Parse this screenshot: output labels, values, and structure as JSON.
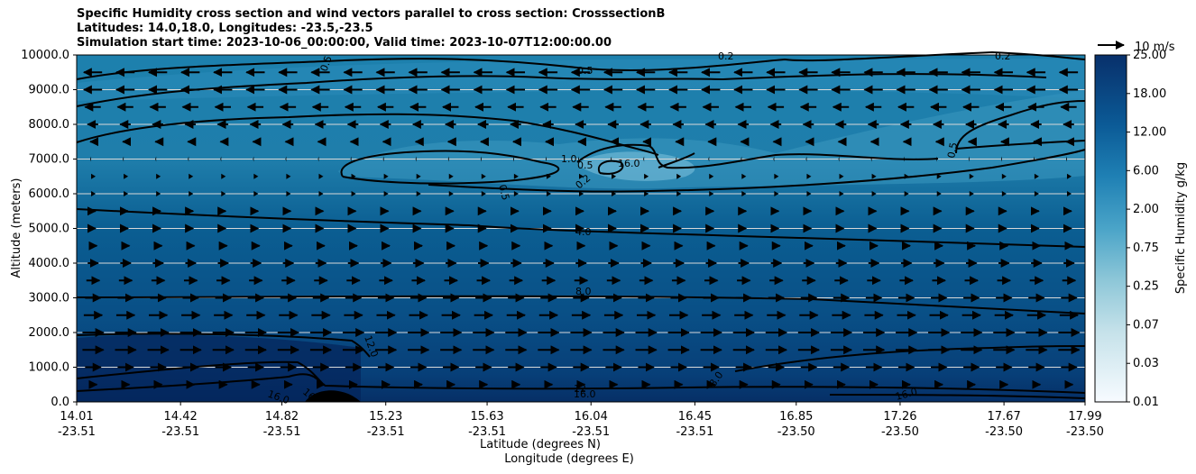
{
  "chart_data": {
    "type": "contour",
    "title_lines": [
      "Specific Humidity cross section and wind vectors parallel to cross section: CrosssectionB",
      "Latitudes: 14.0,18.0, Longitudes: -23.5,-23.5",
      "Simulation start time: 2023-10-06_00:00:00, Valid time: 2023-10-07T12:00:00.00"
    ],
    "ylabel": "Altitude (meters)",
    "xlabel_lines": [
      "Latitude (degrees N)",
      "Longitude (degrees E)"
    ],
    "ylim": [
      0,
      10000
    ],
    "yticks": [
      "0.0",
      "1000.0",
      "2000.0",
      "3000.0",
      "4000.0",
      "5000.0",
      "6000.0",
      "7000.0",
      "8000.0",
      "9000.0",
      "10000.0"
    ],
    "xticks": [
      {
        "lat": "14.01",
        "lon": "-23.51"
      },
      {
        "lat": "14.42",
        "lon": "-23.51"
      },
      {
        "lat": "14.82",
        "lon": "-23.51"
      },
      {
        "lat": "15.23",
        "lon": "-23.51"
      },
      {
        "lat": "15.63",
        "lon": "-23.51"
      },
      {
        "lat": "16.04",
        "lon": "-23.51"
      },
      {
        "lat": "16.45",
        "lon": "-23.51"
      },
      {
        "lat": "16.85",
        "lon": "-23.50"
      },
      {
        "lat": "17.26",
        "lon": "-23.50"
      },
      {
        "lat": "17.67",
        "lon": "-23.50"
      },
      {
        "lat": "17.99",
        "lon": "-23.50"
      }
    ],
    "colorbar": {
      "label": "Specific Humidity g/kg",
      "ticks": [
        "0.01",
        "0.03",
        "0.07",
        "0.25",
        "0.75",
        "2.00",
        "6.00",
        "12.00",
        "18.00",
        "25.00"
      ]
    },
    "quiver_key": "10 m/s",
    "contour_labels": [
      "0.5",
      "0.5",
      "0.2",
      "0.2",
      "1.0",
      "0.5",
      "0.2",
      "0.5",
      "0.5",
      "4.0",
      "8.0",
      "12.0",
      "12",
      "16.0",
      "16.0",
      "16.0",
      "16",
      "8.0",
      "16.0"
    ],
    "wind_rows": [
      {
        "altitude": 9500,
        "u": -7
      },
      {
        "altitude": 9000,
        "u": -7
      },
      {
        "altitude": 8500,
        "u": -6
      },
      {
        "altitude": 8000,
        "u": -4
      },
      {
        "altitude": 7500,
        "u": -2
      },
      {
        "altitude": 7000,
        "u": -1
      },
      {
        "altitude": 6500,
        "u": 1
      },
      {
        "altitude": 6000,
        "u": 1
      },
      {
        "altitude": 5500,
        "u": 2
      },
      {
        "altitude": 5000,
        "u": 2
      },
      {
        "altitude": 4500,
        "u": 3
      },
      {
        "altitude": 4000,
        "u": 4
      },
      {
        "altitude": 3500,
        "u": 5
      },
      {
        "altitude": 3000,
        "u": 6
      },
      {
        "altitude": 2500,
        "u": 7
      },
      {
        "altitude": 2000,
        "u": 8
      },
      {
        "altitude": 1500,
        "u": 8
      },
      {
        "altitude": 1000,
        "u": 6
      },
      {
        "altitude": 500,
        "u": 3
      }
    ],
    "colors": {
      "low": "#f7fbff",
      "mid": "#2a8cba",
      "high": "#08306b"
    }
  }
}
